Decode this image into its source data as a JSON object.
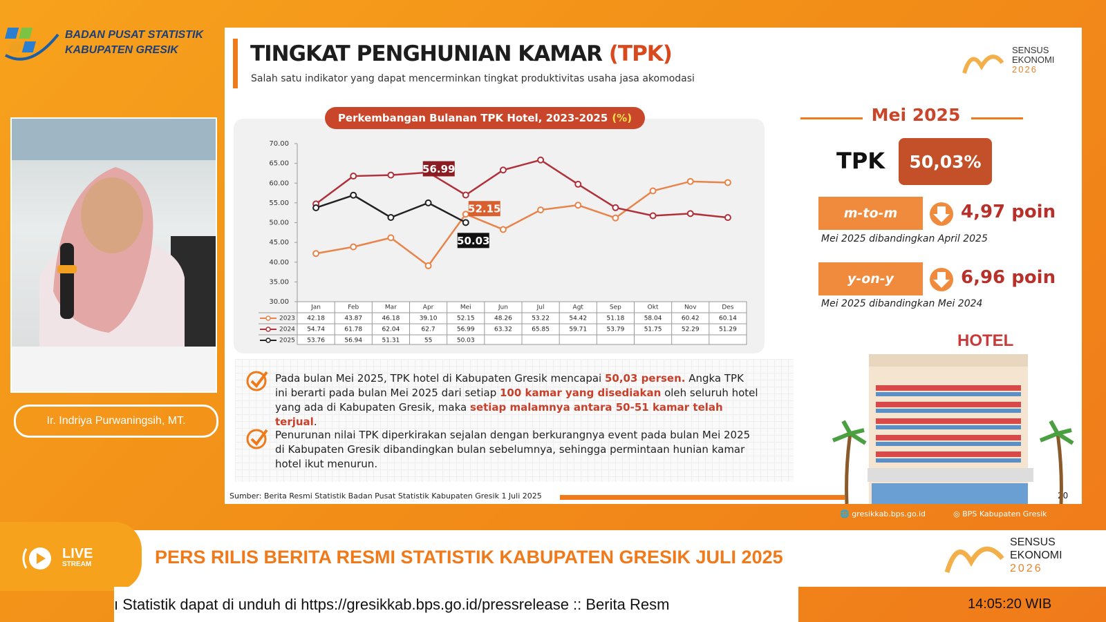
{
  "header": {
    "org": "BADAN PUSAT STATISTIK",
    "region": "KABUPATEN GRESIK"
  },
  "presenter": {
    "name": "Ir. Indriya Purwaningsih, MT."
  },
  "slide": {
    "title": "TINGKAT PENGHUNIAN KAMAR",
    "title_accent": "(TPK)",
    "subtitle": "Salah satu indikator yang dapat mencerminkan tingkat produktivitas usaha jasa akomodasi",
    "logo": [
      "SENSUS",
      "EKONOMI",
      "2026"
    ],
    "summary": {
      "period": "Mei 2025",
      "label": "TPK",
      "value": "50,03%",
      "mtm": {
        "label": "m-to-m",
        "change": "4,97 poin",
        "note": "Mei 2025 dibandingkan April 2025"
      },
      "yoy": {
        "label": "y-on-y",
        "change": "6,96 poin",
        "note": "Mei 2025 dibandingkan Mei 2024"
      }
    },
    "bullets": [
      [
        "Pada bulan Mei 2025, TPK hotel di Kabupaten Gresik mencapai ",
        "50,03 persen.",
        " Angka TPK ini berarti pada bulan Mei 2025 dari setiap ",
        "100 kamar yang disediakan",
        " oleh seluruh hotel yang ada di Kabupaten Gresik, maka ",
        "setiap malamnya antara 50-51 kamar telah terjual",
        "."
      ],
      [
        "Penurunan nilai TPK diperkirakan sejalan dengan berkurangnya event pada bulan Mei 2025 di Kabupaten Gresik dibandingkan bulan sebelumnya, sehingga permintaan hunian kamar hotel ikut menurun."
      ]
    ],
    "source": "Sumber: Berita Resmi Statistik Badan Pusat Statistik Kabupaten Gresik 1 Juli 2025",
    "page": "20",
    "hotel_sign": "HOTEL",
    "links": [
      "gresikkab.bps.go.id",
      "BPS Kabupaten Gresik"
    ]
  },
  "chart_data": {
    "type": "line",
    "title": "Perkembangan Bulanan TPK Hotel, 2023-2025",
    "title_unit": "(%)",
    "categories": [
      "Jan",
      "Feb",
      "Mar",
      "Apr",
      "Mei",
      "Jun",
      "Jul",
      "Agt",
      "Sep",
      "Okt",
      "Nov",
      "Des"
    ],
    "ylim": [
      30,
      70
    ],
    "yticks": [
      {
        "value": 30,
        "label": "30.00"
      },
      {
        "value": 35,
        "label": "35.00"
      },
      {
        "value": 40,
        "label": "40.00"
      },
      {
        "value": 45,
        "label": "45.00"
      },
      {
        "value": 50,
        "label": "50.00"
      },
      {
        "value": 55,
        "label": "55.00"
      },
      {
        "value": 60,
        "label": "60.00"
      },
      {
        "value": 65,
        "label": "65.00"
      },
      {
        "value": 70,
        "label": "70.00"
      }
    ],
    "series": [
      {
        "name": "2023",
        "color": "#e8834a",
        "values": [
          42.18,
          43.87,
          46.18,
          39.1,
          52.15,
          48.26,
          53.22,
          54.42,
          51.18,
          58.04,
          60.42,
          60.14
        ],
        "value_labels": [
          "42.18",
          "43.87",
          "46.18",
          "39.10",
          "52.15",
          "48.26",
          "53.22",
          "54.42",
          "51.18",
          "58.04",
          "60.42",
          "60.14"
        ]
      },
      {
        "name": "2024",
        "color": "#b0303a",
        "values": [
          54.74,
          61.78,
          62.04,
          62.7,
          56.99,
          63.32,
          65.85,
          59.71,
          53.79,
          51.75,
          52.29,
          51.29
        ],
        "value_labels": [
          "54.74",
          "61.78",
          "62.04",
          "62.7",
          "56.99",
          "63.32",
          "65.85",
          "59.71",
          "53.79",
          "51.75",
          "52.29",
          "51.29"
        ]
      },
      {
        "name": "2025",
        "color": "#222222",
        "values": [
          53.76,
          56.94,
          51.31,
          55,
          50.03,
          null,
          null,
          null,
          null,
          null,
          null,
          null
        ],
        "value_labels": [
          "53.76",
          "56.94",
          "51.31",
          "55",
          "50.03",
          null,
          null,
          null,
          null,
          null,
          null,
          null
        ]
      }
    ]
  },
  "stream": {
    "live": "LIVE",
    "stream": "STREAM",
    "banner": "PERS RILIS BERITA RESMI STATISTIK KABUPATEN GRESIK JULI 2025",
    "ticker": "ı Statistik dapat di unduh di https://gresikkab.bps.go.id/pressrelease :: Berita Resm",
    "logo": [
      "SENSUS",
      "EKONOMI",
      "2026"
    ],
    "time": "14:05:20 WIB"
  }
}
